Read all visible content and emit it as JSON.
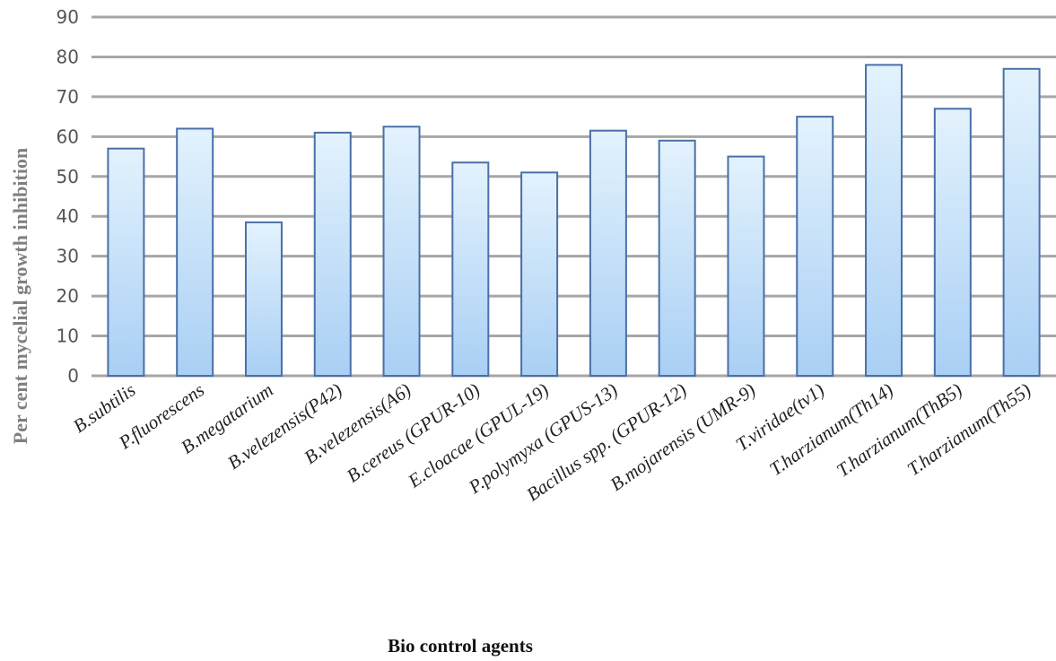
{
  "chart_data": {
    "type": "bar",
    "categories": [
      "B.subtilis",
      "P.fluorescens",
      "B.megatarium",
      "B.velezensis(P42)",
      "B.velezensis(A6)",
      "B.cereus (GPUR-10)",
      "E.cloacae (GPUL-19)",
      "P.polymyxa (GPUS-13)",
      "Bacillus spp. (GPUR-12)",
      "B.mojarensis (UMR-9)",
      "T.viridae(tv1)",
      "T.harzianum(Th14)",
      "T.harzianum(ThB5)",
      "T.harzianum(Th55)"
    ],
    "values": [
      57,
      62,
      38.5,
      61,
      62.5,
      53.5,
      51,
      61.5,
      59,
      55,
      65,
      78,
      67,
      77
    ],
    "xlabel": "Bio control agents",
    "ylabel": "Per cent mycelial growth inhibition",
    "ylim": [
      0,
      90
    ],
    "yticks": [
      0,
      10,
      20,
      30,
      40,
      50,
      60,
      70,
      80,
      90
    ],
    "grid": true,
    "legend": "none",
    "colors": {
      "bar_top": "#e3f2fd",
      "bar_bottom": "#a9cff4",
      "bar_edge": "#4a6fa8",
      "grid": "#a6a6a6"
    }
  }
}
